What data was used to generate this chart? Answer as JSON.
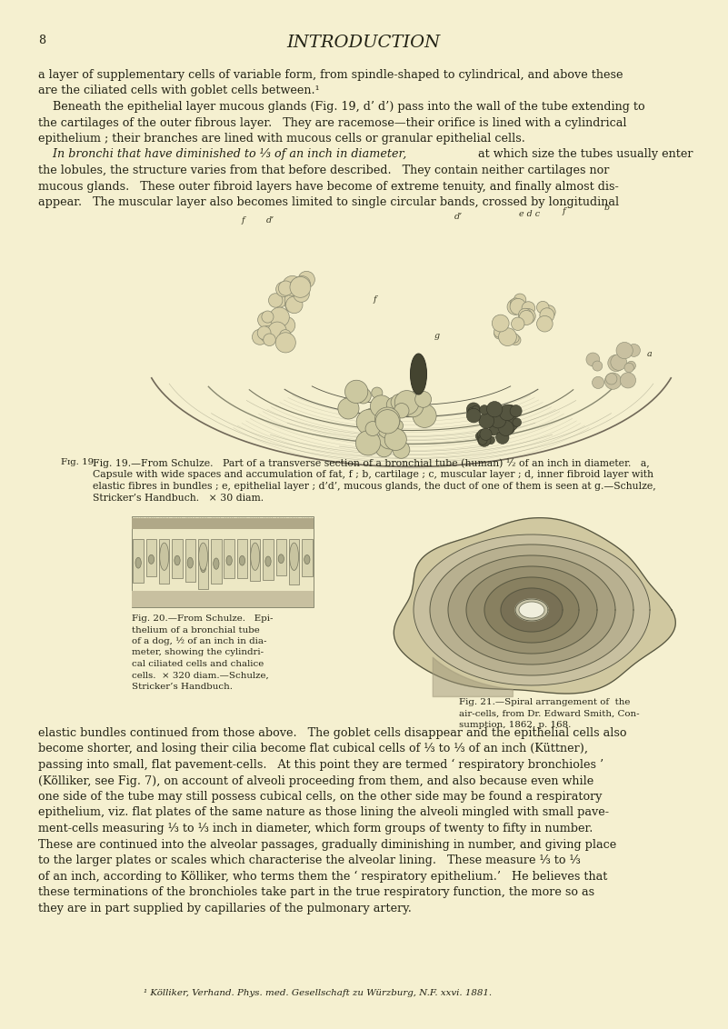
{
  "bg_color": "#f5f0d0",
  "page_number": "8",
  "title": "INTRODUCTION",
  "para1_line1": "a layer of supplementary cells of variable form, from spindle-shaped to cylindrical, and above these",
  "para1_line2": "are the ciliated cells with goblet cells between.¹",
  "para2_line1": "    Beneath the epithelial layer mucous glands (Fig. 19, d’ d’) pass into the wall of the tube extending to",
  "para2_line2": "the cartilages of the outer fibrous layer.   They are racemose—their orifice is lined with a cylindrical",
  "para2_line3": "epithelium ; their branches are lined with mucous cells or granular epithelial cells.",
  "para3_line1_a": "    In bronchi that have diminished to ",
  "para3_line1_b": "⅓",
  "para3_line1_c": " of an inch in diameter,",
  "para3_line1_d": " at which size the tubes usually enter",
  "para3_line2": "the lobules, the structure varies from that before described.   They contain neither cartilages nor",
  "para3_line3": "mucous glands.   These outer fibroid layers have become of extreme tenuity, and finally almost dis-",
  "para3_line4": "appear.   The muscular layer also becomes limited to single circular bands, crossed by longitudinal",
  "fig19_cap1": "Fig. 19.—From Schulze.   Part of a transverse section of a bronchial tube (human) ½ of an inch in diameter.   a,",
  "fig19_cap2": "Capsule with wide spaces and accumulation of fat, f ; b, cartilage ; c, muscular layer ; d, inner fibroid layer with",
  "fig19_cap3": "elastic fibres in bundles ; e, epithelial layer ; d’d’, mucous glands, the duct of one of them is seen at g.—Schulze,",
  "fig19_cap4": "Stricker’s Handbuch.   × 30 diam.",
  "fig20_cap1": "Fig. 20.—From Schulze.   Epi-",
  "fig20_cap2": "thelium of a bronchial tube",
  "fig20_cap3": "of a dog, ½ of an inch in dia-",
  "fig20_cap4": "meter, showing the cylindri-",
  "fig20_cap5": "cal ciliated cells and chalice",
  "fig20_cap6": "cells.  × 320 diam.—Schulze,",
  "fig20_cap7": "Stricker’s Handbuch.",
  "fig21_cap1": "Fig. 21.—Spiral arrangement of  the",
  "fig21_cap2": "air-cells, from Dr. Edward Smith, Con-",
  "fig21_cap3": "sumption, 1862, p. 168.",
  "bot_line1": "elastic bundles continued from those above.   The goblet cells disappear and the epithelial cells also",
  "bot_line2": "become shorter, and losing their cilia become flat cubical cells of ⅓ to ⅓ of an inch (Küttner),",
  "bot_line3": "passing into small, flat pavement-cells.   At this point they are termed ‘ respiratory bronchioles ’",
  "bot_line4": "(Kölliker, see Fig. 7), on account of alveoli proceeding from them, and also because even while",
  "bot_line5": "one side of the tube may still possess cubical cells, on the other side may be found a respiratory",
  "bot_line6": "epithelium, viz. flat plates of the same nature as those lining the alveoli mingled with small pave-",
  "bot_line7": "ment-cells measuring ⅓ to ⅓ inch in diameter, which form groups of twenty to fifty in number.",
  "bot_line8": "These are continued into the alveolar passages, gradually diminishing in number, and giving place",
  "bot_line9": "to the larger plates or scales which characterise the alveolar lining.   These measure ⅓ to ⅓",
  "bot_line10": "of an inch, according to Kölliker, who terms them the ‘ respiratory epithelium.’   He believes that",
  "bot_line11": "these terminations of the bronchioles take part in the true respiratory function, the more so as",
  "bot_line12": "they are in part supplied by capillaries of the pulmonary artery.",
  "footnote": "¹ Kölliker, Verhand. Phys. med. Gesellschaft zu Würzburg, N.F. xxvi. 1881.",
  "text_color": "#222215",
  "body_fs": 9.2,
  "cap_fs": 7.8,
  "small_fs": 7.4,
  "lbl_fs": 6.8
}
